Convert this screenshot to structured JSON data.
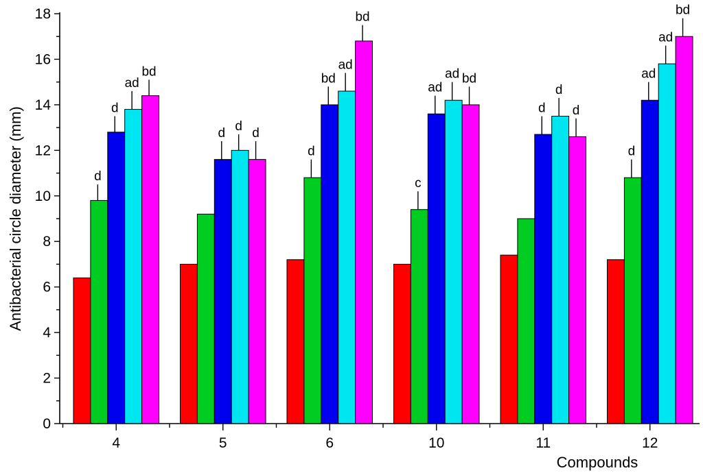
{
  "chart_data": {
    "type": "bar",
    "title": "",
    "xlabel": "Compounds",
    "ylabel": "Antibacterial circle diameter (mm)",
    "ylim": [
      0,
      18
    ],
    "yticks": [
      0,
      2,
      4,
      6,
      8,
      10,
      12,
      14,
      16,
      18
    ],
    "categories": [
      "4",
      "5",
      "6",
      "10",
      "11",
      "12"
    ],
    "grid": false,
    "legend": "none",
    "series": [
      {
        "color": "#ff0000",
        "values": [
          6.4,
          7.0,
          7.2,
          7.0,
          7.4,
          7.2
        ],
        "errors": [
          0,
          0,
          0,
          0,
          0,
          0
        ],
        "labels": [
          "",
          "",
          "",
          "",
          "",
          ""
        ]
      },
      {
        "color": "#00cc22",
        "values": [
          9.8,
          9.2,
          10.8,
          9.4,
          9.0,
          10.8
        ],
        "errors": [
          0.7,
          0,
          0.8,
          0.8,
          0,
          0.8
        ],
        "labels": [
          "d",
          "",
          "d",
          "c",
          "",
          "d"
        ]
      },
      {
        "color": "#0000ee",
        "values": [
          12.8,
          11.6,
          14.0,
          13.6,
          12.7,
          14.2
        ],
        "errors": [
          0.7,
          0.8,
          0.8,
          0.8,
          0.8,
          0.8
        ],
        "labels": [
          "d",
          "d",
          "bd",
          "ad",
          "d",
          "ad"
        ]
      },
      {
        "color": "#00e6f0",
        "values": [
          13.8,
          12.0,
          14.6,
          14.2,
          13.5,
          15.8
        ],
        "errors": [
          0.8,
          0.7,
          0.8,
          0.8,
          0.8,
          0.8
        ],
        "labels": [
          "ad",
          "d",
          "ad",
          "ad",
          "d",
          "ad"
        ]
      },
      {
        "color": "#ff00ff",
        "values": [
          14.4,
          11.6,
          16.8,
          14.0,
          12.6,
          17.0
        ],
        "errors": [
          0.7,
          0.8,
          0.7,
          0.8,
          0.8,
          0.8
        ],
        "labels": [
          "bd",
          "d",
          "bd",
          "bd",
          "d",
          "bd"
        ]
      }
    ]
  }
}
